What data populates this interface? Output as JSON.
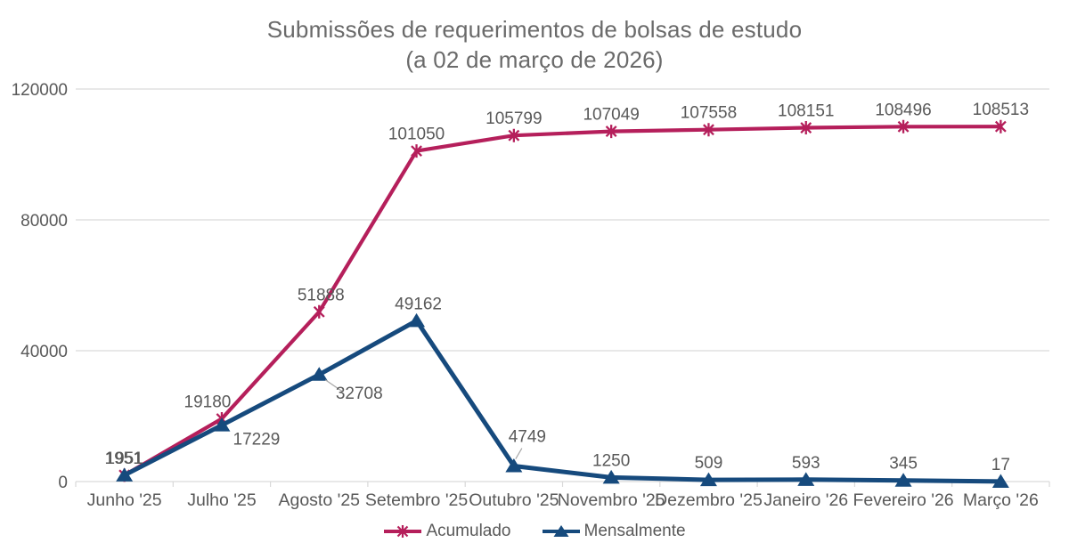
{
  "title": {
    "line1": "Submissões de requerimentos de bolsas de estudo",
    "line2": "(a 02 de março de 2026)"
  },
  "chart_data": {
    "type": "line",
    "categories": [
      "Junho '25",
      "Julho '25",
      "Agosto '25",
      "Setembro '25",
      "Outubro '25",
      "Novembro '25",
      "Dezembro '25",
      "Janeiro '26",
      "Fevereiro '26",
      "Março '26"
    ],
    "series": [
      {
        "name": "Acumulado",
        "color": "#B51F5B",
        "marker": "asterisk",
        "values": [
          1951,
          19180,
          51888,
          101050,
          105799,
          107049,
          107558,
          108151,
          108496,
          108513
        ]
      },
      {
        "name": "Mensalmente",
        "color": "#164A7D",
        "marker": "triangle",
        "values": [
          1951,
          17229,
          32708,
          49162,
          4749,
          1250,
          509,
          593,
          345,
          17
        ]
      }
    ],
    "ylim": [
      0,
      120000
    ],
    "yticks": [
      0,
      40000,
      80000,
      120000
    ],
    "grid": true,
    "legend_position": "bottom",
    "data_labels": true
  },
  "colors": {
    "grid": "#D9D9D9",
    "axis_text": "#595959",
    "label_text": "#595959",
    "leader_line": "#A6A6A6",
    "background": "#FFFFFF"
  }
}
